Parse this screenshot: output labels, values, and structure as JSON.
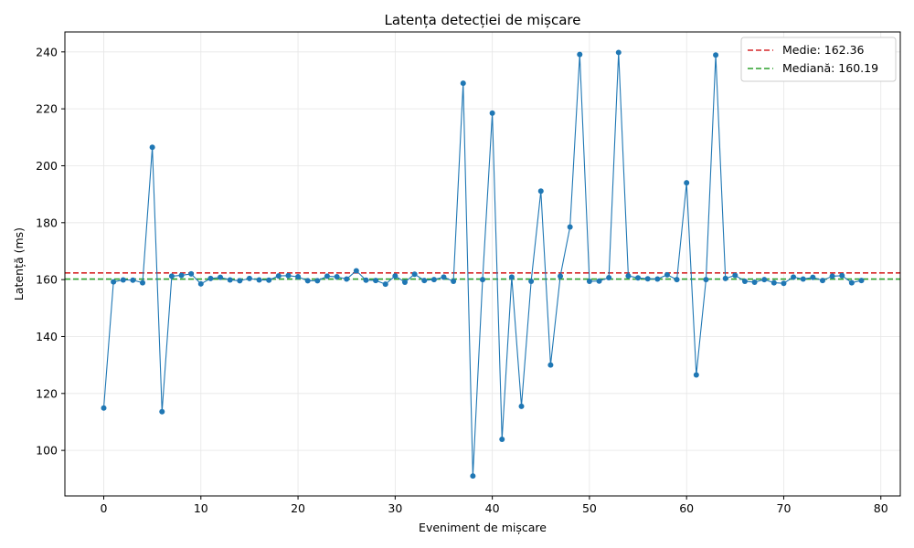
{
  "chart_data": {
    "type": "line",
    "title": "Latența detecției de mișcare",
    "xlabel": "Eveniment de mișcare",
    "ylabel": "Latență (ms)",
    "xlim": [
      -4,
      82
    ],
    "ylim": [
      84,
      247
    ],
    "x_ticks": [
      0,
      10,
      20,
      30,
      40,
      50,
      60,
      70,
      80
    ],
    "y_ticks": [
      100,
      120,
      140,
      160,
      180,
      200,
      220,
      240
    ],
    "grid": true,
    "legend_position": "top-right",
    "series": [
      {
        "color": "#1f77b4",
        "x": [
          0,
          1,
          2,
          3,
          4,
          5,
          6,
          7,
          8,
          9,
          10,
          11,
          12,
          13,
          14,
          15,
          16,
          17,
          18,
          19,
          20,
          21,
          22,
          23,
          24,
          25,
          26,
          27,
          28,
          29,
          30,
          31,
          32,
          33,
          34,
          35,
          36,
          37,
          38,
          39,
          40,
          41,
          42,
          43,
          44,
          45,
          46,
          47,
          48,
          49,
          50,
          51,
          52,
          53,
          54,
          55,
          56,
          57,
          58,
          59,
          60,
          61,
          62,
          63,
          64,
          65,
          66,
          67,
          68,
          69,
          70,
          71,
          72,
          73,
          74,
          75,
          76,
          77,
          78
        ],
        "values": [
          114.9,
          159.2,
          159.9,
          159.8,
          158.9,
          206.5,
          113.6,
          161.2,
          161.5,
          162.0,
          158.5,
          160.4,
          160.8,
          159.9,
          159.6,
          160.4,
          159.9,
          159.8,
          161.3,
          161.4,
          161.0,
          159.6,
          159.6,
          161.2,
          161.0,
          160.2,
          163.1,
          159.8,
          159.7,
          158.4,
          161.3,
          159.1,
          161.9,
          159.7,
          160.0,
          160.9,
          159.4,
          229.0,
          91.0,
          160.0,
          218.5,
          103.9,
          160.9,
          115.5,
          159.4,
          191.1,
          130.0,
          161.2,
          178.5,
          239.1,
          159.4,
          159.5,
          160.7,
          239.8,
          161.3,
          160.6,
          160.3,
          160.2,
          161.7,
          160.0,
          194.0,
          126.5,
          160.0,
          238.9,
          160.4,
          161.5,
          159.4,
          159.1,
          160.0,
          158.9,
          158.7,
          160.9,
          160.2,
          160.8,
          159.7,
          161.2,
          161.4,
          158.9,
          159.7
        ]
      }
    ],
    "reference_lines": [
      {
        "label": "Medie: 162.36",
        "value": 162.36,
        "color": "#d62728",
        "style": "dashed"
      },
      {
        "label": "Mediană: 160.19",
        "value": 160.19,
        "color": "#2ca02c",
        "style": "dashed"
      }
    ]
  }
}
